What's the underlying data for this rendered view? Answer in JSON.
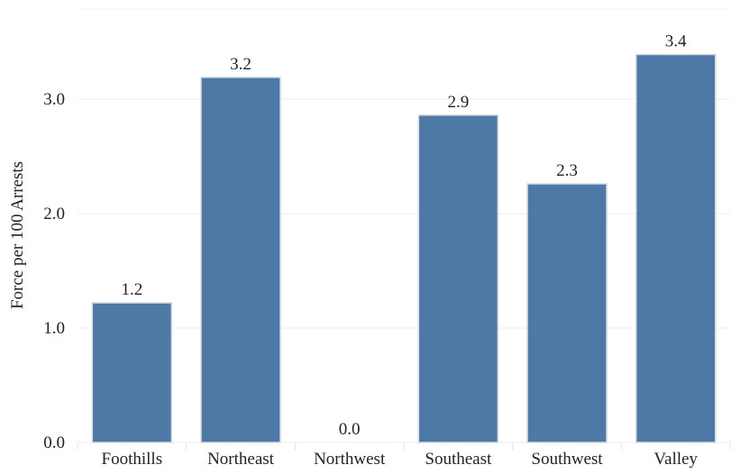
{
  "chart_data": {
    "type": "bar",
    "categories": [
      "Foothills",
      "Northeast",
      "Northwest",
      "Southeast",
      "Southwest",
      "Valley"
    ],
    "values": [
      1.22,
      3.19,
      0.0,
      2.86,
      2.26,
      3.39
    ],
    "data_labels": [
      "1.2",
      "3.2",
      "0.0",
      "2.9",
      "2.3",
      "3.4"
    ],
    "ylabel": "Force per 100 Arrests",
    "xlabel": "",
    "title": "",
    "yticks": [
      0.0,
      1.0,
      2.0,
      3.0
    ],
    "ytick_labels": [
      "0.0",
      "1.0",
      "2.0",
      "3.0"
    ],
    "ylim": [
      0,
      3.7
    ],
    "grid": "horizontal",
    "legend": "none",
    "bar_color": "#4e79a7",
    "bar_edge_color": "#d6dbe2",
    "grid_color": "#ececec"
  }
}
